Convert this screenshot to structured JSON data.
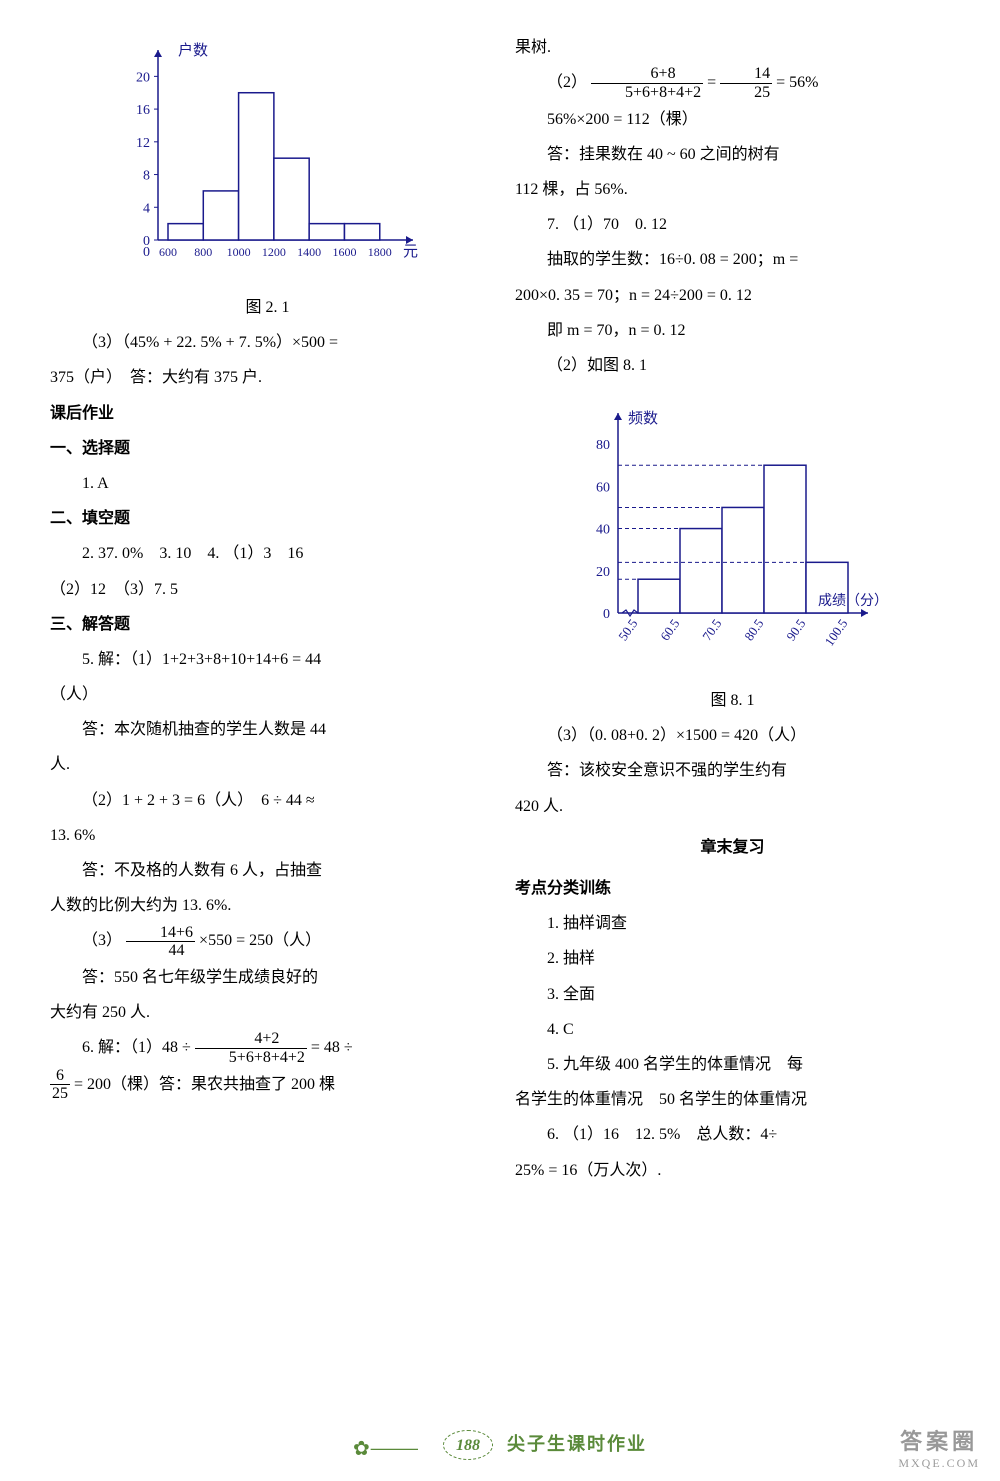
{
  "left": {
    "chart1": {
      "type": "bar",
      "ylabel": "户数",
      "xlabel": "元",
      "caption": "图 2. 1",
      "x_ticks": [
        "0",
        "600",
        "800",
        "1000",
        "1200",
        "1400",
        "1600",
        "1800"
      ],
      "y_ticks": [
        0,
        4,
        8,
        12,
        16,
        20
      ],
      "ylim": [
        0,
        22
      ],
      "values": [
        2,
        6,
        18,
        10,
        2,
        2
      ],
      "bar_fill": "#ffffff",
      "bar_stroke": "#1a1a8c",
      "axis_color": "#1a1a8c",
      "text_color": "#1a1a8c",
      "bar_width": 1.0
    },
    "p3_a": "（3）（45% + 22. 5% + 7. 5%）×500 =",
    "p3_b": "375（户）　答：大约有 375 户.",
    "s1": "课后作业",
    "s2": "一、选择题",
    "q1": "1.  A",
    "s3": "二、填空题",
    "q2": "2.  37. 0%　3.  10　4. （1）3　16",
    "q2b": "（2）12　（3）7. 5",
    "s4": "三、解答题",
    "q5a": "5. 解：（1）1+2+3+8+10+14+6 = 44",
    "q5a2": "（人）",
    "q5a3": "答：本次随机抽查的学生人数是 44",
    "q5a4": "人.",
    "q5b": "（2）1 + 2 + 3 = 6（人）　6 ÷ 44 ≈",
    "q5b2": "13. 6%",
    "q5b3": "答：不及格的人数有 6 人，占抽查",
    "q5b4": "人数的比例大约为 13. 6%.",
    "q5c_pre": "（3）",
    "q5c_num": "14+6",
    "q5c_den": "44",
    "q5c_post": "×550 = 250（人）",
    "q5c2": "答：550 名七年级学生成绩良好的",
    "q5c3": "大约有 250 人.",
    "q6a": "6. 解：（1）48 ÷",
    "q6_num1": "4+2",
    "q6_den1": "5+6+8+4+2",
    "q6_mid": "= 48 ÷",
    "q6_num2": "6",
    "q6_den2": "25",
    "q6_post": "= 200（棵）答：果农共抽查了 200 棵"
  },
  "right": {
    "p0": "果树.",
    "p1_pre": "（2）",
    "p1_num": "6+8",
    "p1_den": "5+6+8+4+2",
    "p1_mid": "=",
    "p1_num2": "14",
    "p1_den2": "25",
    "p1_post": "= 56%",
    "p2": "56%×200 = 112（棵）",
    "p3": "答：挂果数在 40 ~ 60 之间的树有",
    "p3b": "112 棵，占 56%.",
    "q7a": "7. （1）70　0. 12",
    "q7b": "抽取的学生数：16÷0. 08 = 200；m =",
    "q7c": "200×0. 35 = 70；n = 24÷200 = 0. 12",
    "q7d": "即 m = 70，n = 0. 12",
    "q7e": "（2）如图 8. 1",
    "chart2": {
      "type": "bar",
      "ylabel": "频数",
      "xlabel": "成绩（分）",
      "caption": "图 8. 1",
      "x_ticks": [
        "50.5",
        "60.5",
        "70.5",
        "80.5",
        "90.5",
        "100.5"
      ],
      "y_ticks": [
        0,
        20,
        40,
        60,
        80
      ],
      "ylim": [
        0,
        90
      ],
      "values": [
        16,
        40,
        50,
        70,
        24
      ],
      "bar_fill": "#ffffff",
      "bar_stroke": "#1a1a8c",
      "axis_color": "#1a1a8c",
      "text_color": "#1a1a8c",
      "guide_dash": "4,3"
    },
    "q7f": "（3）（0. 08+0. 2）×1500 = 420（人）",
    "q7g": "答：该校安全意识不强的学生约有",
    "q7h": "420 人.",
    "t1": "章末复习",
    "t2": "考点分类训练",
    "r1": "1.  抽样调查",
    "r2": "2.  抽样",
    "r3": "3.  全面",
    "r4": "4.  C",
    "r5": "5.  九年级 400 名学生的体重情况　每",
    "r5b": "名学生的体重情况　50 名学生的体重情况",
    "r6": "6. （1）16　12. 5%　总人数：4÷",
    "r6b": "25% = 16（万人次）."
  },
  "footer": {
    "page": "188",
    "text": "尖子生课时作业"
  },
  "watermark": {
    "line1": "答案圈",
    "line2": "MXQE.COM"
  }
}
